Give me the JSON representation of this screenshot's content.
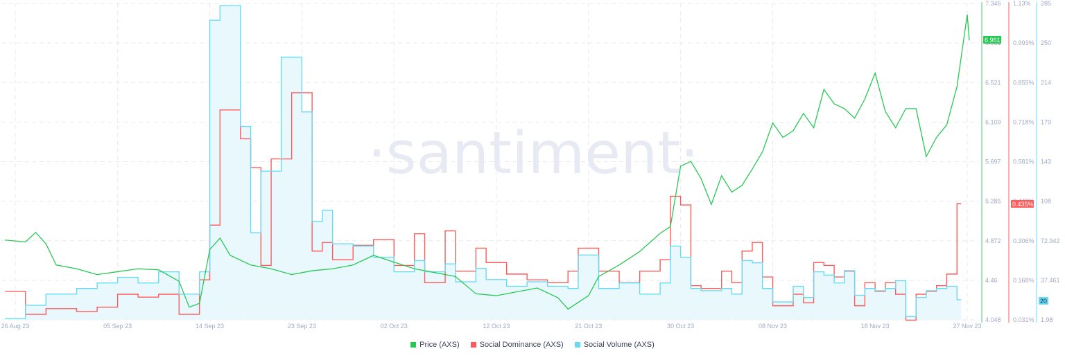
{
  "watermark": "·santiment·",
  "colors": {
    "price": "#26c953",
    "dominance": "#ff5b5b",
    "volume": "#68dbf4",
    "volume_fill": "#e8f8fd",
    "price_axis": "#a7e6b7",
    "dominance_axis": "#f7b3b3",
    "volume_axis": "#b6ebf7"
  },
  "legend": [
    {
      "label": "Price (AXS)",
      "color": "#26c953"
    },
    {
      "label": "Social Dominance (AXS)",
      "color": "#ff5b5b"
    },
    {
      "label": "Social Volume (AXS)",
      "color": "#68dbf4"
    }
  ],
  "axes": {
    "price_ticks": [
      "7.346",
      "6.961",
      "6.521",
      "6.109",
      "5.697",
      "5.285",
      "4.872",
      "4.46",
      "4.048"
    ],
    "dominance_ticks": [
      "1.13%",
      "0.993%",
      "0.855%",
      "0.718%",
      "0.581%",
      "0.443%",
      "0.306%",
      "0.168%",
      "0.031%"
    ],
    "volume_ticks": [
      "285",
      "250",
      "214",
      "179",
      "143",
      "108",
      "72.942",
      "37.461",
      "1.98"
    ],
    "x_ticks": [
      "26 Aug 23",
      "05 Sep 23",
      "14 Sep 23",
      "23 Sep 23",
      "02 Oct 23",
      "12 Oct 23",
      "21 Oct 23",
      "30 Oct 23",
      "08 Nov 23",
      "18 Nov 23",
      "27 Nov 23"
    ]
  },
  "badges": {
    "price_current": "6.961",
    "dominance_current": "0.435%",
    "volume_current": "20"
  },
  "chart_data": {
    "type": "line",
    "title": "",
    "xlabel": "",
    "x_range": [
      "26 Aug 23",
      "27 Nov 23"
    ],
    "legend_position": "bottom",
    "grid": true,
    "series": [
      {
        "name": "Price (AXS)",
        "axis": "left-price",
        "ylim": [
          4.048,
          7.346
        ],
        "points": [
          [
            "25 Aug 23",
            4.88
          ],
          [
            "27 Aug 23",
            4.86
          ],
          [
            "28 Aug 23",
            4.96
          ],
          [
            "29 Aug 23",
            4.84
          ],
          [
            "30 Aug 23",
            4.62
          ],
          [
            "01 Sep 23",
            4.58
          ],
          [
            "03 Sep 23",
            4.52
          ],
          [
            "05 Sep 23",
            4.55
          ],
          [
            "07 Sep 23",
            4.58
          ],
          [
            "09 Sep 23",
            4.57
          ],
          [
            "11 Sep 23",
            4.45
          ],
          [
            "12 Sep 23",
            4.18
          ],
          [
            "13 Sep 23",
            4.22
          ],
          [
            "14 Sep 23",
            4.78
          ],
          [
            "15 Sep 23",
            4.9
          ],
          [
            "16 Sep 23",
            4.72
          ],
          [
            "18 Sep 23",
            4.62
          ],
          [
            "20 Sep 23",
            4.58
          ],
          [
            "22 Sep 23",
            4.52
          ],
          [
            "24 Sep 23",
            4.56
          ],
          [
            "26 Sep 23",
            4.58
          ],
          [
            "28 Sep 23",
            4.62
          ],
          [
            "30 Sep 23",
            4.72
          ],
          [
            "02 Oct 23",
            4.65
          ],
          [
            "04 Oct 23",
            4.58
          ],
          [
            "06 Oct 23",
            4.54
          ],
          [
            "08 Oct 23",
            4.5
          ],
          [
            "10 Oct 23",
            4.32
          ],
          [
            "12 Oct 23",
            4.3
          ],
          [
            "14 Oct 23",
            4.34
          ],
          [
            "16 Oct 23",
            4.38
          ],
          [
            "18 Oct 23",
            4.28
          ],
          [
            "19 Oct 23",
            4.16
          ],
          [
            "21 Oct 23",
            4.3
          ],
          [
            "22 Oct 23",
            4.5
          ],
          [
            "24 Oct 23",
            4.62
          ],
          [
            "26 Oct 23",
            4.76
          ],
          [
            "28 Oct 23",
            4.95
          ],
          [
            "29 Oct 23",
            5.02
          ],
          [
            "30 Oct 23",
            5.65
          ],
          [
            "31 Oct 23",
            5.7
          ],
          [
            "01 Nov 23",
            5.52
          ],
          [
            "02 Nov 23",
            5.25
          ],
          [
            "03 Nov 23",
            5.55
          ],
          [
            "04 Nov 23",
            5.38
          ],
          [
            "05 Nov 23",
            5.45
          ],
          [
            "06 Nov 23",
            5.62
          ],
          [
            "07 Nov 23",
            5.8
          ],
          [
            "08 Nov 23",
            6.1
          ],
          [
            "09 Nov 23",
            5.95
          ],
          [
            "10 Nov 23",
            6.02
          ],
          [
            "11 Nov 23",
            6.2
          ],
          [
            "12 Nov 23",
            6.05
          ],
          [
            "13 Nov 23",
            6.45
          ],
          [
            "14 Nov 23",
            6.3
          ],
          [
            "15 Nov 23",
            6.25
          ],
          [
            "16 Nov 23",
            6.15
          ],
          [
            "17 Nov 23",
            6.35
          ],
          [
            "18 Nov 23",
            6.62
          ],
          [
            "19 Nov 23",
            6.22
          ],
          [
            "20 Nov 23",
            6.05
          ],
          [
            "21 Nov 23",
            6.25
          ],
          [
            "22 Nov 23",
            6.25
          ],
          [
            "23 Nov 23",
            5.75
          ],
          [
            "24 Nov 23",
            5.95
          ],
          [
            "25 Nov 23",
            6.08
          ],
          [
            "26 Nov 23",
            6.48
          ],
          [
            "27 Nov 23",
            7.23
          ],
          [
            "27 Nov 23",
            6.961
          ]
        ]
      },
      {
        "name": "Social Dominance (AXS)",
        "axis": "right-dominance",
        "unit": "%",
        "ylim": [
          0.031,
          1.13
        ],
        "points": [
          [
            "25 Aug 23",
            0.13
          ],
          [
            "27 Aug 23",
            0.05
          ],
          [
            "29 Aug 23",
            0.07
          ],
          [
            "01 Sep 23",
            0.06
          ],
          [
            "03 Sep 23",
            0.075
          ],
          [
            "05 Sep 23",
            0.12
          ],
          [
            "07 Sep 23",
            0.11
          ],
          [
            "09 Sep 23",
            0.12
          ],
          [
            "11 Sep 23",
            0.05
          ],
          [
            "13 Sep 23",
            0.17
          ],
          [
            "14 Sep 23",
            0.36
          ],
          [
            "15 Sep 23",
            0.76
          ],
          [
            "17 Sep 23",
            0.66
          ],
          [
            "18 Sep 23",
            0.56
          ],
          [
            "19 Sep 23",
            0.22
          ],
          [
            "20 Sep 23",
            0.59
          ],
          [
            "22 Sep 23",
            0.82
          ],
          [
            "24 Sep 23",
            0.27
          ],
          [
            "25 Sep 23",
            0.3
          ],
          [
            "26 Sep 23",
            0.24
          ],
          [
            "28 Sep 23",
            0.29
          ],
          [
            "30 Sep 23",
            0.31
          ],
          [
            "02 Oct 23",
            0.22
          ],
          [
            "04 Oct 23",
            0.33
          ],
          [
            "05 Oct 23",
            0.16
          ],
          [
            "07 Oct 23",
            0.34
          ],
          [
            "08 Oct 23",
            0.2
          ],
          [
            "10 Oct 23",
            0.28
          ],
          [
            "11 Oct 23",
            0.23
          ],
          [
            "13 Oct 23",
            0.19
          ],
          [
            "15 Oct 23",
            0.17
          ],
          [
            "17 Oct 23",
            0.16
          ],
          [
            "19 Oct 23",
            0.2
          ],
          [
            "20 Oct 23",
            0.28
          ],
          [
            "22 Oct 23",
            0.2
          ],
          [
            "24 Oct 23",
            0.16
          ],
          [
            "26 Oct 23",
            0.2
          ],
          [
            "28 Oct 23",
            0.24
          ],
          [
            "29 Oct 23",
            0.46
          ],
          [
            "30 Oct 23",
            0.43
          ],
          [
            "31 Oct 23",
            0.15
          ],
          [
            "01 Nov 23",
            0.14
          ],
          [
            "03 Nov 23",
            0.2
          ],
          [
            "04 Nov 23",
            0.16
          ],
          [
            "05 Nov 23",
            0.27
          ],
          [
            "06 Nov 23",
            0.3
          ],
          [
            "07 Nov 23",
            0.18
          ],
          [
            "08 Nov 23",
            0.08
          ],
          [
            "10 Nov 23",
            0.12
          ],
          [
            "11 Nov 23",
            0.09
          ],
          [
            "12 Nov 23",
            0.23
          ],
          [
            "13 Nov 23",
            0.22
          ],
          [
            "14 Nov 23",
            0.18
          ],
          [
            "15 Nov 23",
            0.2
          ],
          [
            "16 Nov 23",
            0.08
          ],
          [
            "17 Nov 23",
            0.16
          ],
          [
            "18 Nov 23",
            0.13
          ],
          [
            "19 Nov 23",
            0.16
          ],
          [
            "20 Nov 23",
            0.12
          ],
          [
            "21 Nov 23",
            0.03
          ],
          [
            "22 Nov 23",
            0.12
          ],
          [
            "23 Nov 23",
            0.13
          ],
          [
            "24 Nov 23",
            0.15
          ],
          [
            "25 Nov 23",
            0.19
          ],
          [
            "26 Nov 23",
            0.435
          ]
        ]
      },
      {
        "name": "Social Volume (AXS)",
        "axis": "right-volume",
        "ylim": [
          1.98,
          285
        ],
        "points": [
          [
            "25 Aug 23",
            3
          ],
          [
            "27 Aug 23",
            15
          ],
          [
            "29 Aug 23",
            25
          ],
          [
            "01 Sep 23",
            30
          ],
          [
            "03 Sep 23",
            35
          ],
          [
            "05 Sep 23",
            40
          ],
          [
            "07 Sep 23",
            35
          ],
          [
            "09 Sep 23",
            45
          ],
          [
            "11 Sep 23",
            25
          ],
          [
            "13 Sep 23",
            45
          ],
          [
            "14 Sep 23",
            270
          ],
          [
            "15 Sep 23",
            283
          ],
          [
            "17 Sep 23",
            175
          ],
          [
            "18 Sep 23",
            80
          ],
          [
            "19 Sep 23",
            135
          ],
          [
            "21 Sep 23",
            237
          ],
          [
            "23 Sep 23",
            188
          ],
          [
            "24 Sep 23",
            90
          ],
          [
            "25 Sep 23",
            100
          ],
          [
            "26 Sep 23",
            70
          ],
          [
            "28 Sep 23",
            68
          ],
          [
            "30 Sep 23",
            58
          ],
          [
            "02 Oct 23",
            45
          ],
          [
            "04 Oct 23",
            55
          ],
          [
            "05 Oct 23",
            45
          ],
          [
            "07 Oct 23",
            52
          ],
          [
            "08 Oct 23",
            36
          ],
          [
            "10 Oct 23",
            48
          ],
          [
            "11 Oct 23",
            38
          ],
          [
            "13 Oct 23",
            32
          ],
          [
            "15 Oct 23",
            36
          ],
          [
            "17 Oct 23",
            32
          ],
          [
            "19 Oct 23",
            30
          ],
          [
            "20 Oct 23",
            60
          ],
          [
            "22 Oct 23",
            30
          ],
          [
            "24 Oct 23",
            35
          ],
          [
            "26 Oct 23",
            25
          ],
          [
            "28 Oct 23",
            35
          ],
          [
            "29 Oct 23",
            68
          ],
          [
            "30 Oct 23",
            58
          ],
          [
            "31 Oct 23",
            30
          ],
          [
            "01 Nov 23",
            28
          ],
          [
            "03 Nov 23",
            30
          ],
          [
            "04 Nov 23",
            25
          ],
          [
            "05 Nov 23",
            55
          ],
          [
            "06 Nov 23",
            53
          ],
          [
            "07 Nov 23",
            30
          ],
          [
            "08 Nov 23",
            18
          ],
          [
            "10 Nov 23",
            32
          ],
          [
            "11 Nov 23",
            22
          ],
          [
            "12 Nov 23",
            45
          ],
          [
            "13 Nov 23",
            42
          ],
          [
            "14 Nov 23",
            35
          ],
          [
            "15 Nov 23",
            46
          ],
          [
            "16 Nov 23",
            24
          ],
          [
            "17 Nov 23",
            30
          ],
          [
            "18 Nov 23",
            28
          ],
          [
            "19 Nov 23",
            30
          ],
          [
            "20 Nov 23",
            37
          ],
          [
            "21 Nov 23",
            5
          ],
          [
            "22 Nov 23",
            22
          ],
          [
            "23 Nov 23",
            28
          ],
          [
            "24 Nov 23",
            30
          ],
          [
            "25 Nov 23",
            32
          ],
          [
            "26 Nov 23",
            20
          ]
        ]
      }
    ]
  }
}
